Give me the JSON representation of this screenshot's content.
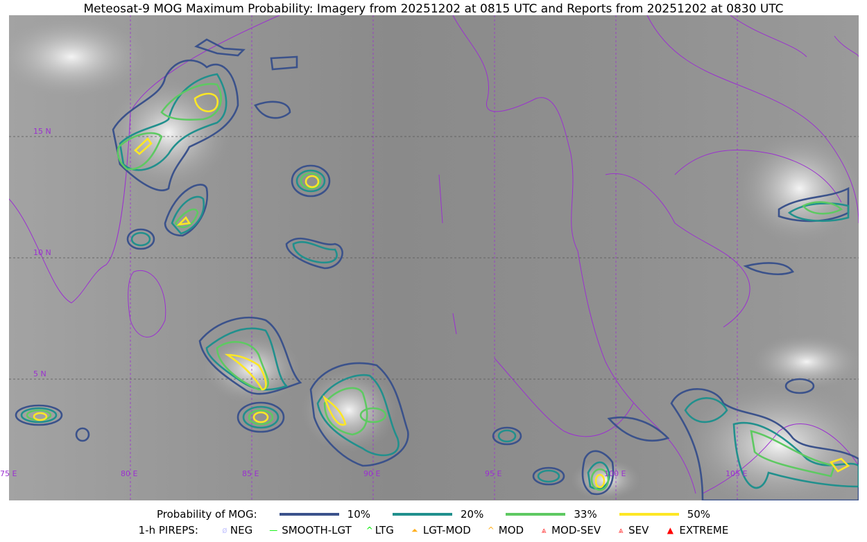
{
  "title": "Meteosat-9 MOG Maximum Probability: Imagery from 20251202 at 0815 UTC and Reports from 20251202 at 0830 UTC",
  "map": {
    "lon_labels": [
      "75 E",
      "80 E",
      "85 E",
      "90 E",
      "95 E",
      "100 E",
      "105 E"
    ],
    "lat_labels": [
      "15 N",
      "10 N",
      "5 N"
    ],
    "gridline_color": "#9b30d0",
    "coastline_color": "#9b30d0"
  },
  "legend": {
    "prob_label": "Probability of MOG:",
    "levels": [
      {
        "label": "10%",
        "color": "#3b528b"
      },
      {
        "label": "20%",
        "color": "#21908d"
      },
      {
        "label": "33%",
        "color": "#5ec962"
      },
      {
        "label": "50%",
        "color": "#fde725"
      }
    ],
    "pireps_label": "1-h PIREPS:",
    "pireps": [
      {
        "label": "NEG",
        "icon": "neg-icon",
        "color": "#c8c8ff"
      },
      {
        "label": "SMOOTH-LGT",
        "icon": "line-icon",
        "color": "#00ee00"
      },
      {
        "label": "LTG",
        "icon": "chevron-icon",
        "color": "#00ee00"
      },
      {
        "label": "LGT-MOD",
        "icon": "lgt-mod-icon",
        "color": "#ffb020"
      },
      {
        "label": "MOD",
        "icon": "mod-icon",
        "color": "#ffb020"
      },
      {
        "label": "MOD-SEV",
        "icon": "mod-sev-icon",
        "color": "#ff3030"
      },
      {
        "label": "SEV",
        "icon": "sev-icon",
        "color": "#ff3030"
      },
      {
        "label": "EXTREME",
        "icon": "extreme-icon",
        "color": "#ff0000"
      }
    ]
  }
}
